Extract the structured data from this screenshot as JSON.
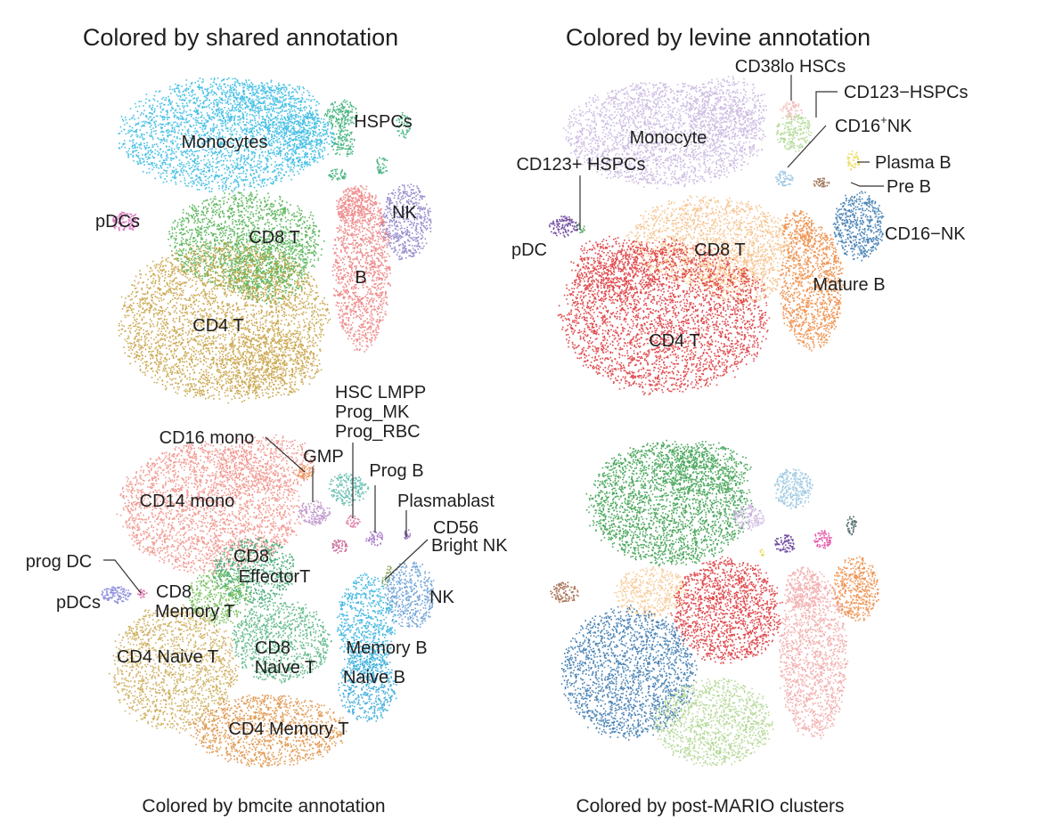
{
  "chart_data": [
    {
      "type": "scatter",
      "title": "Colored by shared annotation",
      "xlabel": "",
      "ylabel": "",
      "grid": false,
      "legend": "none",
      "clusters": [
        {
          "name": "Monocytes",
          "color": "#29b6e0"
        },
        {
          "name": "HSPCs",
          "color": "#2eaa6e"
        },
        {
          "name": "pDCs",
          "color": "#d667b8"
        },
        {
          "name": "CD8 T",
          "color": "#45ad46"
        },
        {
          "name": "NK",
          "color": "#8a7bc4"
        },
        {
          "name": "B",
          "color": "#ec7a7a"
        },
        {
          "name": "CD4 T",
          "color": "#c39b36"
        }
      ]
    },
    {
      "type": "scatter",
      "title": "Colored by levine annotation",
      "xlabel": "",
      "ylabel": "",
      "grid": false,
      "legend": "none",
      "clusters": [
        {
          "name": "Monocyte",
          "color": "#c5b1dd"
        },
        {
          "name": "CD38lo HSCs",
          "color": "#f2b3b3"
        },
        {
          "name": "CD123−HSPCs",
          "color": "#a9d68b"
        },
        {
          "name": "CD16⁺NK",
          "color": "#8ebfe0"
        },
        {
          "name": "CD123+ HSPCs",
          "color": "#3aa04a"
        },
        {
          "name": "Plasma B",
          "color": "#e7d33c"
        },
        {
          "name": "Pre B",
          "color": "#8f5a3a"
        },
        {
          "name": "CD16−NK",
          "color": "#2c6ea8"
        },
        {
          "name": "pDC",
          "color": "#5a3090"
        },
        {
          "name": "CD8 T",
          "color": "#f5bc80"
        },
        {
          "name": "Mature B",
          "color": "#ec8236"
        },
        {
          "name": "CD4 T",
          "color": "#da2c30"
        }
      ]
    },
    {
      "type": "scatter",
      "title": "Colored by bmcite annotation",
      "xlabel": "",
      "ylabel": "",
      "grid": false,
      "legend": "none",
      "clusters": [
        {
          "name": "CD14 mono",
          "color": "#f08a80"
        },
        {
          "name": "CD16 mono",
          "color": "#ec8a45"
        },
        {
          "name": "GMP",
          "color": "#b98ac6"
        },
        {
          "name": "HSC LMPP",
          "color": "#4fb5a6"
        },
        {
          "name": "Prog_MK",
          "color": "#d86c98"
        },
        {
          "name": "Prog_RBC",
          "color": "#c1568c"
        },
        {
          "name": "Prog B",
          "color": "#9a60c2"
        },
        {
          "name": "Plasmablast",
          "color": "#8a62b5"
        },
        {
          "name": "CD56",
          "color": "#6aa06a"
        },
        {
          "name": "Bright NK",
          "color": "#7a9a40"
        },
        {
          "name": "prog DC",
          "color": "#d65c9c"
        },
        {
          "name": "pDCs",
          "color": "#7c7cd8"
        },
        {
          "name": "CD8 Effector T",
          "color": "#2fa066"
        },
        {
          "name": "CD8 Memory T",
          "color": "#67b94a"
        },
        {
          "name": "NK",
          "color": "#5e98d2"
        },
        {
          "name": "CD4 Naive T",
          "color": "#c7a549"
        },
        {
          "name": "CD8 Naive T",
          "color": "#4cb07a"
        },
        {
          "name": "Memory B",
          "color": "#28aedd"
        },
        {
          "name": "Naive B",
          "color": "#2aa3d6"
        },
        {
          "name": "CD4 Memory T",
          "color": "#dd8b39"
        }
      ]
    },
    {
      "type": "scatter",
      "title": "Colored by post-MARIO clusters",
      "xlabel": "",
      "ylabel": "",
      "grid": false,
      "legend": "none",
      "clusters": [
        {
          "color": "#2e9a43"
        },
        {
          "color": "#8fc2de"
        },
        {
          "color": "#c9b3de"
        },
        {
          "color": "#5a3090"
        },
        {
          "color": "#e0399a"
        },
        {
          "color": "#2f4f4f"
        },
        {
          "color": "#ec8236"
        },
        {
          "color": "#9a5a3a"
        },
        {
          "color": "#f7c48c"
        },
        {
          "color": "#da2c30"
        },
        {
          "color": "#f1a3a3"
        },
        {
          "color": "#2c6ea8"
        },
        {
          "color": "#aad38a"
        },
        {
          "color": "#e5d840"
        }
      ]
    }
  ],
  "labels": {
    "shared_monocytes": "Monocytes",
    "shared_hspcs": "HSPCs",
    "shared_pdcs": "pDCs",
    "shared_cd8t": "CD8 T",
    "shared_nk": "NK",
    "shared_b": "B",
    "shared_cd4t": "CD4 T",
    "levine_cd38lo": "CD38lo HSCs",
    "levine_cd123neg": "CD123−HSPCs",
    "levine_cd16nk_main": "CD16",
    "levine_cd16nk_sup": "+",
    "levine_cd16nk_tail": "NK",
    "levine_monocyte": "Monocyte",
    "levine_cd123pos": "CD123+ HSPCs",
    "levine_plasmab": "Plasma B",
    "levine_preb": "Pre B",
    "levine_pdc": "pDC",
    "levine_cd8t": "CD8 T",
    "levine_cd16negnk": "CD16−NK",
    "levine_matureb": "Mature B",
    "levine_cd4t": "CD4 T",
    "bm_hsc_lmpp": "HSC LMPP",
    "bm_prog_mk": "Prog_MK",
    "bm_prog_rbc": "Prog_RBC",
    "bm_cd16mono": "CD16 mono",
    "bm_gmp": "GMP",
    "bm_progb": "Prog B",
    "bm_cd14mono": "CD14 mono",
    "bm_plasmablast": "Plasmablast",
    "bm_cd56": "CD56",
    "bm_brightnk": "Bright NK",
    "bm_progdc": "prog DC",
    "bm_cd8eff_1": "CD8",
    "bm_cd8eff_2": "EffectorT",
    "bm_pdcs": "pDCs",
    "bm_cd8mem_1": "CD8",
    "bm_cd8mem_2": "Memory T",
    "bm_nk": "NK",
    "bm_cd8naive_1": "CD8",
    "bm_cd8naive_2": "Naive T",
    "bm_memoryb": "Memory B",
    "bm_cd4naive": "CD4 Naive T",
    "bm_naiveb": "Naive B",
    "bm_cd4memory": "CD4 Memory T"
  }
}
